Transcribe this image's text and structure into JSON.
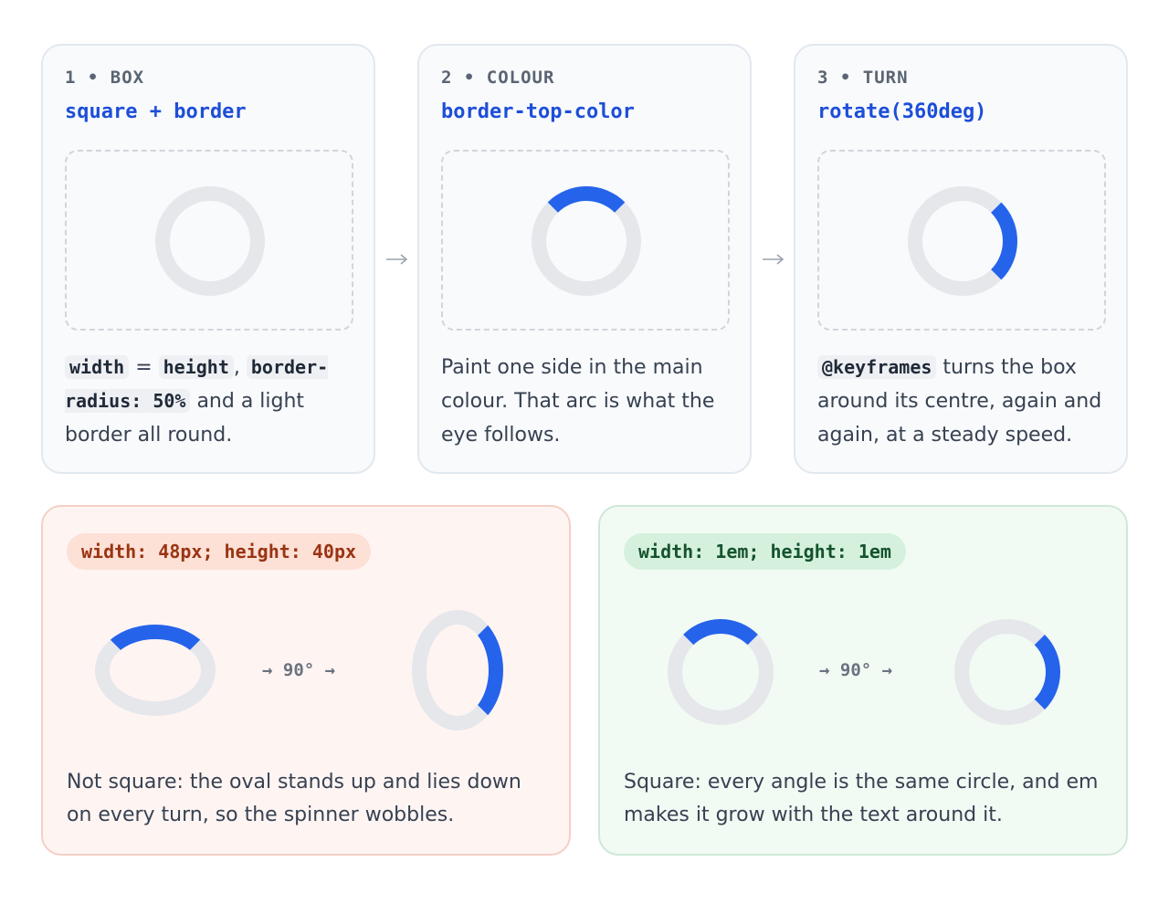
{
  "steps": [
    {
      "eyebrow": "1 • BOX",
      "code": "square + border",
      "description": [
        {
          "code": "width"
        },
        " = ",
        {
          "code": "height"
        },
        ", ",
        {
          "code": "border-radius: 50%"
        },
        " and a light border all round."
      ]
    },
    {
      "eyebrow": "2 • COLOUR",
      "code": "border-top-color",
      "description": [
        "Paint one side in the main colour. That arc is what the eye follows."
      ]
    },
    {
      "eyebrow": "3 • TURN",
      "code": "rotate(360deg)",
      "description": [
        {
          "code": "@keyframes"
        },
        " turns the box around its centre, again and again, at a steady speed."
      ]
    }
  ],
  "comparisons": [
    {
      "code": "width: 48px; height: 40px",
      "rotation": "→ 90° →",
      "caption": "Not square: the oval stands up and lies down on every turn, so the spinner wobbles."
    },
    {
      "code": "width: 1em; height: 1em",
      "rotation": "→ 90° →",
      "caption": "Square: every angle is the same circle, and em makes it grow with the text around it."
    }
  ]
}
